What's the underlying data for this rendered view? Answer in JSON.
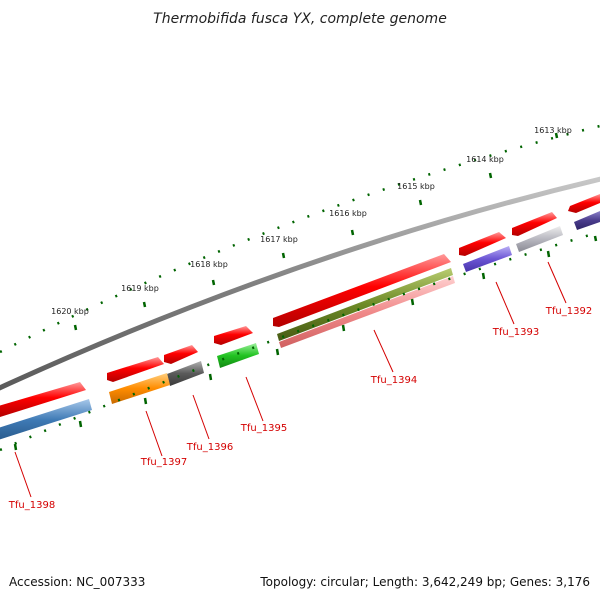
{
  "title": "Thermobifida fusca YX, complete genome",
  "footer": {
    "accession": "Accession: NC_007333",
    "summary": "Topology: circular; Length: 3,642,249 bp; Genes: 3,176"
  },
  "ruler": {
    "labels": [
      "1613 kbp",
      "1614 kbp",
      "1615 kbp",
      "1616 kbp",
      "1617 kbp",
      "1618 kbp",
      "1619 kbp",
      "1620 kbp"
    ]
  },
  "genes": [
    {
      "label": "Tfu_1392",
      "color": "#ff0000"
    },
    {
      "label": "Tfu_1393",
      "color": "#ff0000"
    },
    {
      "label": "Tfu_1394",
      "color": "#ff0000"
    },
    {
      "label": "Tfu_1395",
      "color": "#ff0000"
    },
    {
      "label": "Tfu_1396",
      "color": "#ff0000"
    },
    {
      "label": "Tfu_1397",
      "color": "#ff0000"
    },
    {
      "label": "Tfu_1398",
      "color": "#ff0000"
    }
  ],
  "features": [
    {
      "name": "feature-1392",
      "color": "#9a9aa6"
    },
    {
      "name": "feature-1393",
      "color": "#6b55d4"
    },
    {
      "name": "feature-1394a",
      "color": "#6d8a26"
    },
    {
      "name": "feature-1394b",
      "color": "#f08a8a"
    },
    {
      "name": "feature-1395",
      "color": "#22c322"
    },
    {
      "name": "feature-1396",
      "color": "#5a5a5a"
    },
    {
      "name": "feature-1397",
      "color": "#ff8c00"
    },
    {
      "name": "feature-1398",
      "color": "#3f7ab5"
    },
    {
      "name": "feature-1391",
      "color": "#4a3c8c"
    }
  ],
  "colors": {
    "backbone": "#808080",
    "tick": "#006400",
    "label_line": "#d40000"
  }
}
